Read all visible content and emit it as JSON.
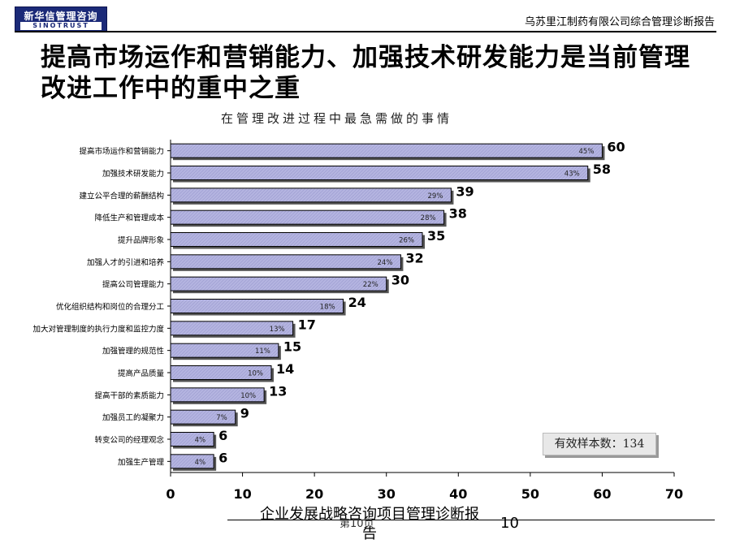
{
  "header": {
    "logo_cn": "新华信管理咨询",
    "logo_en": "SINOTRUST",
    "report_name": "乌苏里江制药有限公司综合管理诊断报告"
  },
  "title": "提高市场运作和营销能力、加强技术研发能力是当前管理改进工作中的重中之重",
  "sample_note": "有效样本数：134",
  "footer": {
    "text": "企业发展战略咨询项目管理诊断报告",
    "page_cn": "第10页",
    "page_num": "10"
  },
  "colors": {
    "bar_fill": "#b4b4e0",
    "bar_stroke": "#000000"
  },
  "chart_data": {
    "type": "bar",
    "orientation": "horizontal",
    "title": "在管理改进过程中最急需做的事情",
    "categories": [
      "提高市场运作和营销能力",
      "加强技术研发能力",
      "建立公平合理的薪酬结构",
      "降低生产和管理成本",
      "提升品牌形象",
      "加强人才的引进和培养",
      "提高公司管理能力",
      "优化组织结构和岗位的合理分工",
      "加大对管理制度的执行力度和监控力度",
      "加强管理的规范性",
      "提高产品质量",
      "提高干部的素质能力",
      "加强员工的凝聚力",
      "转变公司的经理观念",
      "加强生产管理"
    ],
    "values": [
      60,
      58,
      39,
      38,
      35,
      32,
      30,
      24,
      17,
      15,
      14,
      13,
      9,
      6,
      6
    ],
    "percent_labels": [
      "45%",
      "43%",
      "29%",
      "28%",
      "26%",
      "24%",
      "22%",
      "18%",
      "13%",
      "11%",
      "10%",
      "10%",
      "7%",
      "4%",
      "4%"
    ],
    "xlim": [
      0,
      70
    ],
    "xticks": [
      "0",
      "10",
      "20",
      "30",
      "40",
      "50",
      "60",
      "70"
    ],
    "grid": false
  }
}
